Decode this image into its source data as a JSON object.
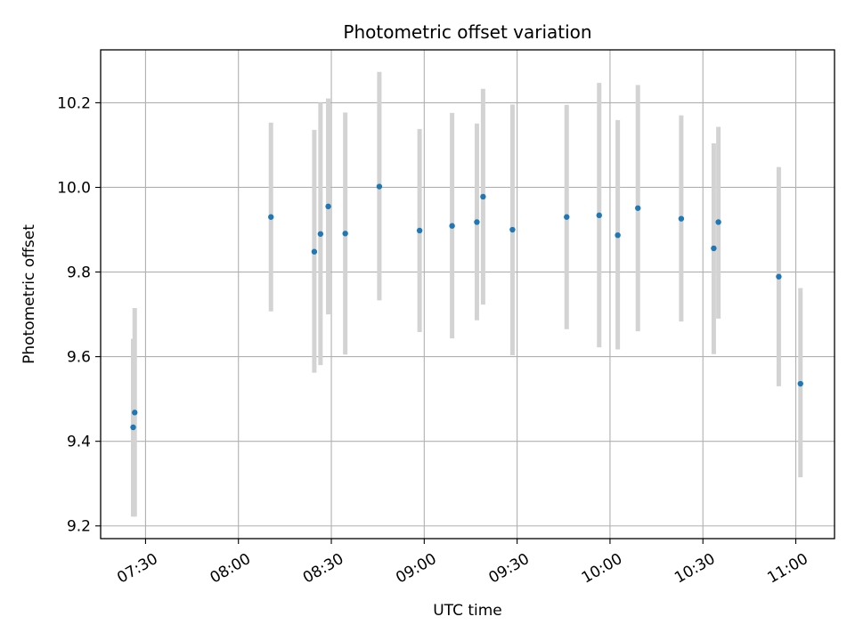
{
  "chart_data": {
    "type": "scatter",
    "title": "Photometric offset variation",
    "xlabel": "UTC time",
    "ylabel": "Photometric offset",
    "grid": true,
    "xlim": [
      "07:15:30",
      "11:12:30"
    ],
    "ylim": [
      9.17,
      10.325
    ],
    "x_ticks": [
      "07:30",
      "08:00",
      "08:30",
      "09:00",
      "09:30",
      "10:00",
      "10:30",
      "11:00"
    ],
    "y_ticks": [
      "9.2",
      "9.4",
      "9.6",
      "9.8",
      "10.0",
      "10.2"
    ],
    "colors": {
      "point": "#1f77b4",
      "errorbar": "#d3d3d3",
      "grid": "#b0b0b0"
    },
    "series": [
      {
        "points": [
          {
            "x": "07:26:00",
            "y": 9.433,
            "lo": 9.222,
            "hi": 9.642
          },
          {
            "x": "07:26:30",
            "y": 9.468,
            "lo": 9.222,
            "hi": 9.715
          },
          {
            "x": "08:10:30",
            "y": 9.93,
            "lo": 9.707,
            "hi": 10.153
          },
          {
            "x": "08:24:30",
            "y": 9.848,
            "lo": 9.562,
            "hi": 10.136
          },
          {
            "x": "08:26:30",
            "y": 9.89,
            "lo": 9.58,
            "hi": 10.2
          },
          {
            "x": "08:29:00",
            "y": 9.955,
            "lo": 9.7,
            "hi": 10.21
          },
          {
            "x": "08:34:30",
            "y": 9.891,
            "lo": 9.605,
            "hi": 10.177
          },
          {
            "x": "08:45:30",
            "y": 10.002,
            "lo": 9.733,
            "hi": 10.273
          },
          {
            "x": "08:58:30",
            "y": 9.898,
            "lo": 9.658,
            "hi": 10.138
          },
          {
            "x": "09:09:00",
            "y": 9.909,
            "lo": 9.643,
            "hi": 10.176
          },
          {
            "x": "09:17:00",
            "y": 9.918,
            "lo": 9.686,
            "hi": 10.151
          },
          {
            "x": "09:19:00",
            "y": 9.978,
            "lo": 9.723,
            "hi": 10.233
          },
          {
            "x": "09:28:30",
            "y": 9.9,
            "lo": 9.603,
            "hi": 10.196
          },
          {
            "x": "09:46:00",
            "y": 9.93,
            "lo": 9.665,
            "hi": 10.195
          },
          {
            "x": "09:56:30",
            "y": 9.934,
            "lo": 9.622,
            "hi": 10.247
          },
          {
            "x": "10:02:30",
            "y": 9.887,
            "lo": 9.617,
            "hi": 10.159
          },
          {
            "x": "10:09:00",
            "y": 9.951,
            "lo": 9.66,
            "hi": 10.242
          },
          {
            "x": "10:23:00",
            "y": 9.926,
            "lo": 9.683,
            "hi": 10.17
          },
          {
            "x": "10:33:30",
            "y": 9.856,
            "lo": 9.606,
            "hi": 10.104
          },
          {
            "x": "10:35:00",
            "y": 9.918,
            "lo": 9.69,
            "hi": 10.143
          },
          {
            "x": "10:54:30",
            "y": 9.789,
            "lo": 9.53,
            "hi": 10.048
          },
          {
            "x": "11:01:30",
            "y": 9.536,
            "lo": 9.315,
            "hi": 9.762
          }
        ]
      }
    ]
  }
}
